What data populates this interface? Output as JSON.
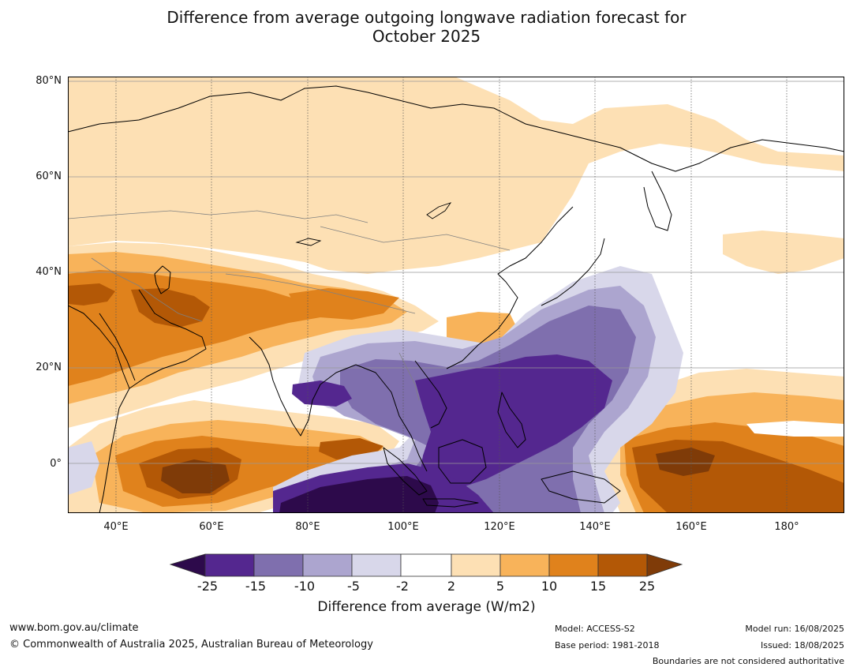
{
  "title_line1": "Difference from average outgoing longwave radiation forecast for",
  "title_line2": "October 2025",
  "lat_labels": [
    "80°N",
    "60°N",
    "40°N",
    "20°N",
    "0°"
  ],
  "lon_labels": [
    "40°E",
    "60°E",
    "80°E",
    "100°E",
    "120°E",
    "140°E",
    "160°E",
    "180°"
  ],
  "colorbar": {
    "ticks": [
      "-25",
      "-15",
      "-10",
      "-5",
      "-2",
      "2",
      "5",
      "10",
      "15",
      "25"
    ],
    "colors": [
      "#2d0a4b",
      "#54278f",
      "#7f6fae",
      "#aca5cf",
      "#d8d7ea",
      "#ffffff",
      "#fde0b4",
      "#f8b35a",
      "#e0821c",
      "#b35806",
      "#7f3b08"
    ],
    "label": "Difference from average (W/m2)"
  },
  "footer": {
    "website": "www.bom.gov.au/climate",
    "copyright": "© Commonwealth of Australia 2025, Australian Bureau of Meteorology",
    "model": "Model: ACCESS-S2",
    "base_period": "Base period: 1981-2018",
    "model_run": "Model run: 16/08/2025",
    "issued": "Issued: 18/08/2025",
    "disclaimer": "Boundaries are not considered authoritative"
  },
  "map": {
    "extent": {
      "lon_min": 30,
      "lon_max": 192,
      "lat_min": -10,
      "lat_max": 80
    },
    "colors": {
      "ocean_background": "#ffffff",
      "coastline": "#000000",
      "borders": "#808080",
      "gridline": "#999999"
    }
  }
}
